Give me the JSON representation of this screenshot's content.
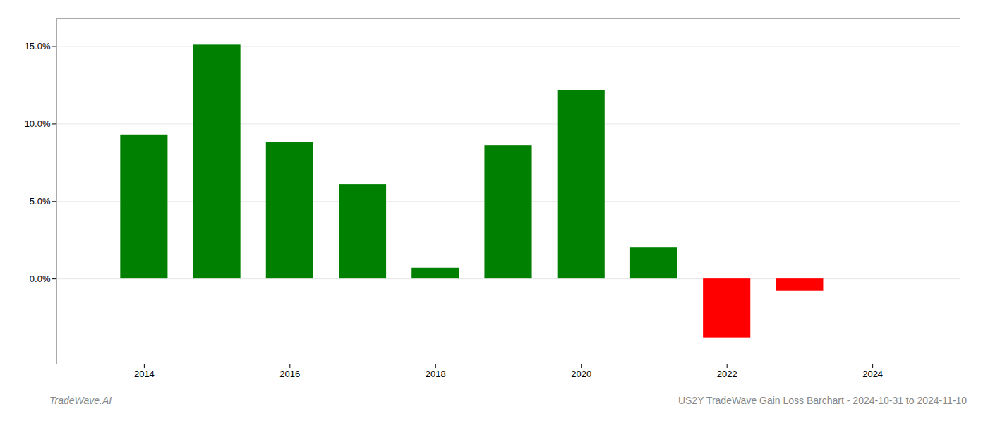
{
  "chart_data": {
    "type": "bar",
    "x": [
      2014,
      2015,
      2016,
      2017,
      2018,
      2019,
      2020,
      2021,
      2022,
      2023
    ],
    "values": [
      0.093,
      0.151,
      0.088,
      0.061,
      0.007,
      0.086,
      0.122,
      0.02,
      -0.038,
      -0.008
    ],
    "colors": [
      "#008000",
      "#008000",
      "#008000",
      "#008000",
      "#008000",
      "#008000",
      "#008000",
      "#008000",
      "#ff0000",
      "#ff0000"
    ],
    "xlim": [
      2012.8,
      2025.2
    ],
    "xticks": [
      2014,
      2016,
      2018,
      2020,
      2022,
      2024
    ],
    "ylim": [
      -0.055,
      0.168
    ],
    "yticks": [
      {
        "value": 0.0,
        "label": "0.0%"
      },
      {
        "value": 0.05,
        "label": "5.0%"
      },
      {
        "value": 0.1,
        "label": "10.0%"
      },
      {
        "value": 0.15,
        "label": "15.0%"
      }
    ],
    "grid": true,
    "annotations": [
      "TradeWave.AI",
      "US2Y TradeWave Gain Loss Barchart - 2024-10-31 to 2024-11-10"
    ]
  }
}
